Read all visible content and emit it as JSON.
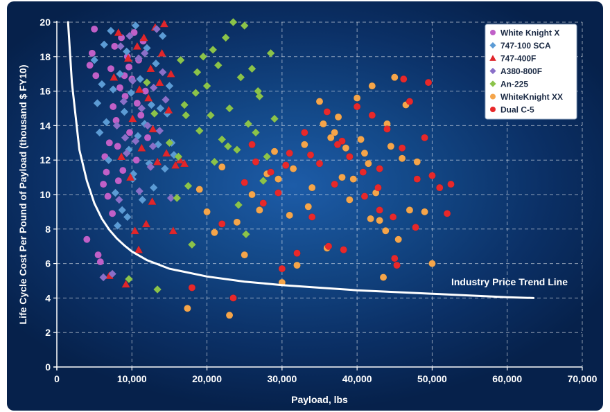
{
  "chart_data": {
    "type": "scatter",
    "xlabel": "Payload, lbs",
    "ylabel": "Life Cycle Cost Per Pound of Payload (thousand $ FY10)",
    "xlim": [
      0,
      70000
    ],
    "ylim": [
      0,
      20
    ],
    "x_ticks": [
      "0",
      "10,000",
      "20,000",
      "30,000",
      "40,000",
      "50,000",
      "60,000",
      "70,000"
    ],
    "y_ticks": [
      "0",
      "2",
      "4",
      "6",
      "8",
      "10",
      "12",
      "14",
      "16",
      "18",
      "20"
    ],
    "grid": true,
    "legend_position": "top-right",
    "series": [
      {
        "name": "White Knight X",
        "color": "#c060c8",
        "marker": "circle",
        "points": [
          [
            4000,
            7.4
          ],
          [
            4400,
            17.5
          ],
          [
            4700,
            18.2
          ],
          [
            5000,
            19.6
          ],
          [
            5200,
            16.9
          ],
          [
            5500,
            6.5
          ],
          [
            5800,
            6.1
          ],
          [
            6200,
            10.6
          ],
          [
            6400,
            12.2
          ],
          [
            6800,
            9.9
          ],
          [
            7000,
            13.0
          ],
          [
            7200,
            17.3
          ],
          [
            7500,
            15.1
          ],
          [
            7700,
            18.6
          ],
          [
            7900,
            14.3
          ],
          [
            8100,
            12.8
          ],
          [
            8400,
            16.2
          ],
          [
            8600,
            19.1
          ],
          [
            8800,
            11.4
          ],
          [
            9100,
            15.7
          ],
          [
            9400,
            18.0
          ],
          [
            9700,
            13.6
          ],
          [
            10000,
            16.7
          ],
          [
            10300,
            19.4
          ],
          [
            10600,
            12.0
          ],
          [
            10900,
            17.8
          ],
          [
            11200,
            14.6
          ],
          [
            11500,
            18.9
          ],
          [
            11800,
            16.0
          ],
          [
            12100,
            13.3
          ],
          [
            6600,
            11.3
          ],
          [
            7400,
            8.9
          ],
          [
            8200,
            10.8
          ],
          [
            9000,
            16.9
          ],
          [
            9600,
            17.4
          ],
          [
            10700,
            15.3
          ]
        ]
      },
      {
        "name": "747-100 SCA",
        "color": "#5b9bd5",
        "marker": "diamond",
        "points": [
          [
            5000,
            17.8
          ],
          [
            5400,
            15.3
          ],
          [
            5700,
            13.6
          ],
          [
            6000,
            16.4
          ],
          [
            6300,
            18.7
          ],
          [
            6600,
            14.2
          ],
          [
            6900,
            12.0
          ],
          [
            7200,
            19.5
          ],
          [
            7500,
            16.1
          ],
          [
            7800,
            10.1
          ],
          [
            8100,
            8.2
          ],
          [
            8400,
            17.0
          ],
          [
            8700,
            9.1
          ],
          [
            9000,
            14.8
          ],
          [
            9300,
            18.3
          ],
          [
            9600,
            12.6
          ],
          [
            9900,
            15.9
          ],
          [
            10200,
            11.2
          ],
          [
            10500,
            19.8
          ],
          [
            10800,
            13.4
          ],
          [
            11100,
            16.7
          ],
          [
            11400,
            9.7
          ],
          [
            11700,
            14.1
          ],
          [
            12000,
            18.5
          ],
          [
            12300,
            11.8
          ],
          [
            12600,
            15.2
          ],
          [
            12900,
            10.4
          ],
          [
            13200,
            17.6
          ],
          [
            13500,
            12.9
          ],
          [
            13800,
            15.0
          ],
          [
            14100,
            19.2
          ],
          [
            14400,
            11.5
          ],
          [
            14700,
            14.7
          ],
          [
            15000,
            16.3
          ],
          [
            15300,
            13.0
          ],
          [
            15600,
            12.3
          ],
          [
            9400,
            8.7
          ],
          [
            10100,
            10.9
          ]
        ]
      },
      {
        "name": "747-400F",
        "color": "#e0262b",
        "marker": "triangle",
        "points": [
          [
            7000,
            5.3
          ],
          [
            7600,
            16.8
          ],
          [
            8200,
            19.4
          ],
          [
            8600,
            12.2
          ],
          [
            9200,
            4.8
          ],
          [
            9500,
            17.9
          ],
          [
            9800,
            11.0
          ],
          [
            10100,
            14.4
          ],
          [
            10400,
            7.9
          ],
          [
            10700,
            18.6
          ],
          [
            11000,
            16.1
          ],
          [
            11300,
            12.7
          ],
          [
            11600,
            19.1
          ],
          [
            11900,
            8.3
          ],
          [
            12200,
            15.6
          ],
          [
            12500,
            17.3
          ],
          [
            12800,
            13.8
          ],
          [
            13100,
            19.7
          ],
          [
            13400,
            11.9
          ],
          [
            13700,
            16.5
          ],
          [
            14000,
            18.2
          ],
          [
            14300,
            19.9
          ],
          [
            14600,
            12.4
          ],
          [
            14900,
            14.9
          ],
          [
            15200,
            17.0
          ],
          [
            15800,
            11.7
          ],
          [
            16400,
            12.0
          ],
          [
            17000,
            11.8
          ],
          [
            15500,
            7.9
          ],
          [
            10900,
            6.8
          ],
          [
            12700,
            9.6
          ]
        ]
      },
      {
        "name": "A380-800F",
        "color": "#8a6fc8",
        "marker": "diamond",
        "points": [
          [
            6200,
            5.2
          ],
          [
            7400,
            5.4
          ],
          [
            8000,
            14.0
          ],
          [
            8500,
            18.6
          ],
          [
            8900,
            15.4
          ],
          [
            9300,
            12.4
          ],
          [
            9700,
            19.2
          ],
          [
            10100,
            16.6
          ],
          [
            10500,
            13.1
          ],
          [
            10900,
            17.9
          ],
          [
            11300,
            15.0
          ],
          [
            11700,
            18.2
          ],
          [
            12100,
            14.0
          ],
          [
            12500,
            11.6
          ],
          [
            12900,
            16.2
          ],
          [
            13300,
            19.6
          ],
          [
            13700,
            13.7
          ],
          [
            14100,
            17.1
          ],
          [
            14500,
            15.5
          ],
          [
            15200,
            9.8
          ],
          [
            8300,
            9.7
          ],
          [
            9100,
            13.3
          ],
          [
            11000,
            10.2
          ],
          [
            12800,
            12.8
          ]
        ]
      },
      {
        "name": "An-225",
        "color": "#8bc34a",
        "marker": "diamond",
        "points": [
          [
            9600,
            5.1
          ],
          [
            13400,
            4.5
          ],
          [
            16000,
            9.8
          ],
          [
            16500,
            17.8
          ],
          [
            17000,
            15.2
          ],
          [
            17500,
            10.5
          ],
          [
            18000,
            7.1
          ],
          [
            18500,
            15.9
          ],
          [
            19000,
            13.7
          ],
          [
            19500,
            18.0
          ],
          [
            20000,
            16.3
          ],
          [
            20500,
            14.6
          ],
          [
            21000,
            11.9
          ],
          [
            21500,
            17.5
          ],
          [
            22000,
            13.2
          ],
          [
            22500,
            19.1
          ],
          [
            23000,
            15.0
          ],
          [
            23500,
            20.0
          ],
          [
            24000,
            12.6
          ],
          [
            24500,
            16.8
          ],
          [
            25000,
            19.8
          ],
          [
            25500,
            14.1
          ],
          [
            26000,
            17.3
          ],
          [
            26500,
            13.6
          ],
          [
            27000,
            15.7
          ],
          [
            27500,
            10.8
          ],
          [
            28000,
            12.2
          ],
          [
            28500,
            18.2
          ],
          [
            29000,
            14.4
          ],
          [
            16200,
            12.2
          ],
          [
            17200,
            14.6
          ],
          [
            18700,
            17.1
          ],
          [
            20800,
            18.4
          ],
          [
            22800,
            12.8
          ],
          [
            25200,
            7.7
          ],
          [
            24200,
            9.4
          ],
          [
            26800,
            16.0
          ],
          [
            13000,
            14.7
          ],
          [
            15000,
            13.0
          ],
          [
            12000,
            16.5
          ]
        ]
      },
      {
        "name": "WhiteKnight XX",
        "color": "#f5a54a",
        "marker": "circle",
        "points": [
          [
            17400,
            3.4
          ],
          [
            19000,
            10.3
          ],
          [
            20000,
            9.0
          ],
          [
            21000,
            7.8
          ],
          [
            22000,
            11.6
          ],
          [
            23000,
            3.0
          ],
          [
            24000,
            8.4
          ],
          [
            25000,
            6.5
          ],
          [
            26000,
            10.0
          ],
          [
            27000,
            9.1
          ],
          [
            28000,
            11.2
          ],
          [
            29000,
            12.5
          ],
          [
            30000,
            4.9
          ],
          [
            31000,
            8.8
          ],
          [
            32000,
            5.9
          ],
          [
            33000,
            12.9
          ],
          [
            34000,
            10.4
          ],
          [
            35000,
            15.4
          ],
          [
            36000,
            6.9
          ],
          [
            37000,
            13.6
          ],
          [
            38000,
            11.0
          ],
          [
            39000,
            9.7
          ],
          [
            40000,
            15.6
          ],
          [
            41000,
            12.4
          ],
          [
            42000,
            16.3
          ],
          [
            43000,
            8.5
          ],
          [
            44000,
            14.1
          ],
          [
            45000,
            16.8
          ],
          [
            46000,
            12.1
          ],
          [
            47000,
            9.1
          ],
          [
            48000,
            11.9
          ],
          [
            49000,
            9.0
          ],
          [
            50000,
            6.0
          ],
          [
            29500,
            10.9
          ],
          [
            31500,
            11.5
          ],
          [
            33500,
            9.3
          ],
          [
            35500,
            14.1
          ],
          [
            36500,
            13.3
          ],
          [
            37500,
            14.5
          ],
          [
            38500,
            12.7
          ],
          [
            39500,
            10.9
          ],
          [
            40500,
            13.2
          ],
          [
            41500,
            11.8
          ],
          [
            42500,
            10.1
          ],
          [
            43500,
            5.2
          ],
          [
            44500,
            12.8
          ],
          [
            45500,
            7.4
          ],
          [
            46500,
            15.2
          ],
          [
            41800,
            8.6
          ],
          [
            43800,
            7.9
          ]
        ]
      },
      {
        "name": "Dual C-5",
        "color": "#e8282a",
        "marker": "circle",
        "points": [
          [
            18000,
            4.6
          ],
          [
            22000,
            8.3
          ],
          [
            23500,
            4.0
          ],
          [
            25000,
            10.7
          ],
          [
            26000,
            12.9
          ],
          [
            27500,
            9.5
          ],
          [
            28500,
            11.3
          ],
          [
            29500,
            10.1
          ],
          [
            30000,
            5.7
          ],
          [
            31000,
            12.4
          ],
          [
            32000,
            6.6
          ],
          [
            33000,
            13.6
          ],
          [
            34000,
            8.7
          ],
          [
            35000,
            11.8
          ],
          [
            36000,
            14.8
          ],
          [
            37000,
            10.6
          ],
          [
            38000,
            13.1
          ],
          [
            39000,
            12.2
          ],
          [
            40000,
            15.1
          ],
          [
            41000,
            9.9
          ],
          [
            42000,
            14.6
          ],
          [
            43000,
            11.5
          ],
          [
            44000,
            13.8
          ],
          [
            45000,
            6.3
          ],
          [
            46000,
            12.7
          ],
          [
            47000,
            15.4
          ],
          [
            48000,
            10.9
          ],
          [
            49000,
            13.3
          ],
          [
            50000,
            11.1
          ],
          [
            51000,
            10.4
          ],
          [
            52000,
            8.9
          ],
          [
            52500,
            10.6
          ],
          [
            46200,
            16.7
          ],
          [
            49500,
            16.5
          ],
          [
            47800,
            8.1
          ],
          [
            44800,
            8.7
          ],
          [
            36200,
            7.0
          ],
          [
            38200,
            6.8
          ],
          [
            43000,
            9.1
          ],
          [
            45300,
            5.9
          ],
          [
            26500,
            11.9
          ],
          [
            30500,
            11.7
          ],
          [
            33800,
            12.3
          ],
          [
            37400,
            12.9
          ],
          [
            40800,
            11.3
          ],
          [
            42800,
            10.4
          ]
        ]
      }
    ],
    "trend_line": {
      "label": "Industry Price Trend Line",
      "color": "#ffffff",
      "points": [
        [
          1500,
          20
        ],
        [
          2000,
          16.5
        ],
        [
          3000,
          12.6
        ],
        [
          4000,
          10.8
        ],
        [
          5000,
          9.5
        ],
        [
          6000,
          8.6
        ],
        [
          7000,
          7.95
        ],
        [
          8000,
          7.45
        ],
        [
          9000,
          7.05
        ],
        [
          10000,
          6.7
        ],
        [
          12000,
          6.2
        ],
        [
          15000,
          5.7
        ],
        [
          20000,
          5.25
        ],
        [
          25000,
          4.95
        ],
        [
          30000,
          4.75
        ],
        [
          35000,
          4.6
        ],
        [
          40000,
          4.45
        ],
        [
          45000,
          4.35
        ],
        [
          50000,
          4.25
        ],
        [
          55000,
          4.15
        ],
        [
          60000,
          4.05
        ],
        [
          63500,
          4.0
        ]
      ]
    }
  }
}
